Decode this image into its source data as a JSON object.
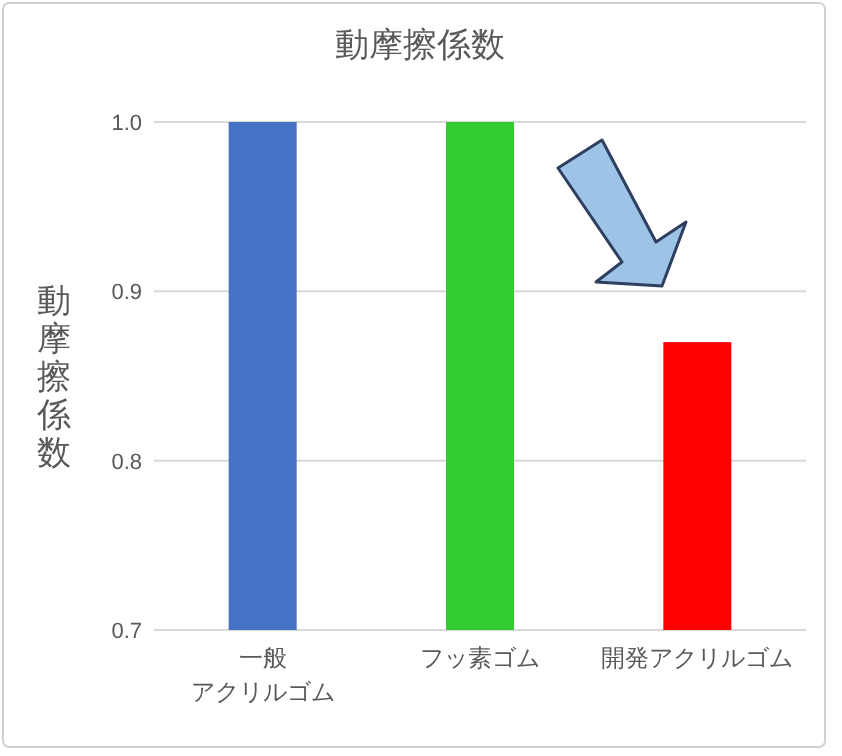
{
  "chart_data": {
    "type": "bar",
    "title": "動摩擦係数",
    "ylabel": "動摩擦係数",
    "categories": [
      "一般アクリルゴム",
      "フッ素ゴム",
      "開発アクリルゴム"
    ],
    "values": [
      1.0,
      1.0,
      0.87
    ],
    "colors": [
      "#4472c4",
      "#33cc33",
      "#ff0000"
    ],
    "ylim": [
      0.7,
      1.0
    ],
    "yticks": [
      {
        "value": 0.7,
        "label": "0.7"
      },
      {
        "value": 0.8,
        "label": "0.8"
      },
      {
        "value": 0.9,
        "label": "0.9"
      },
      {
        "value": 1.0,
        "label": "1.0"
      }
    ],
    "grid": "y"
  }
}
